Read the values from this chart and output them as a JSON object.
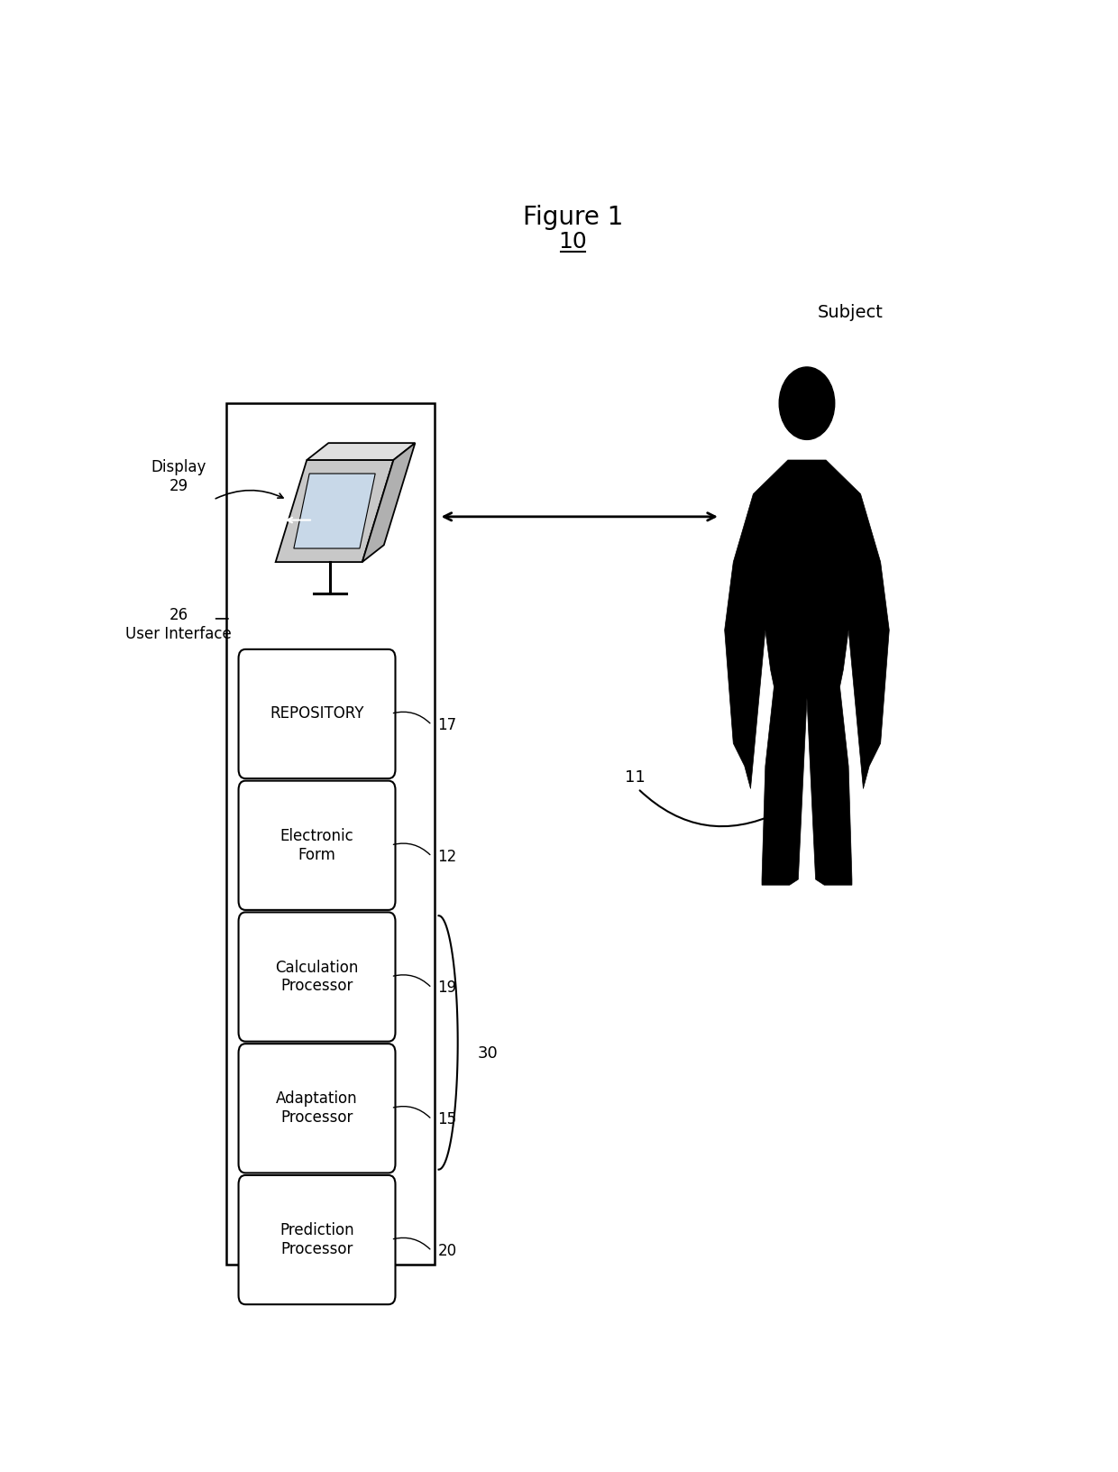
{
  "title": "Figure 1",
  "label_10": "10",
  "bg_color": "#ffffff",
  "fig_width": 12.4,
  "fig_height": 16.32,
  "dpi": 100,
  "modules": [
    {
      "label": "REPOSITORY",
      "num": "17",
      "bold": false
    },
    {
      "label": "Electronic\nForm",
      "num": "12",
      "bold": false
    },
    {
      "label": "Calculation\nProcessor",
      "num": "19",
      "bold": false
    },
    {
      "label": "Adaptation\nProcessor",
      "num": "15",
      "bold": false
    },
    {
      "label": "Prediction\nProcessor",
      "num": "20",
      "bold": false
    }
  ],
  "display_label": "Display\n29",
  "ui_label": "26\nUser Interface",
  "subject_label": "Subject",
  "subject_num": "11",
  "arrow_label_30": "30"
}
